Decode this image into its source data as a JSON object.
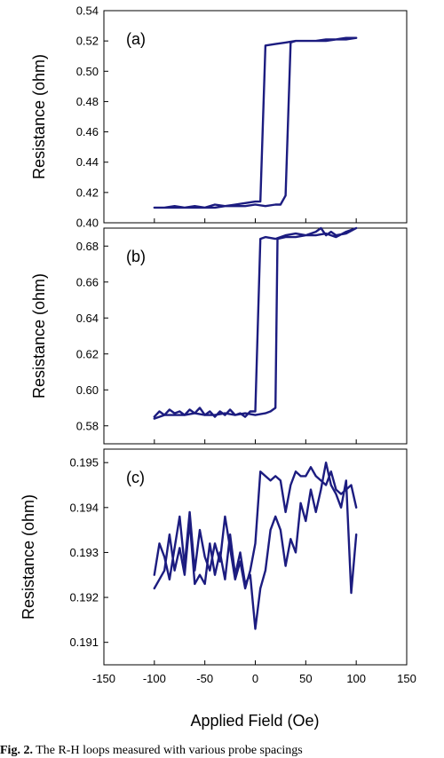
{
  "caption": {
    "label": "Fig. 2.",
    "text": "The R-H loops measured with various probe spacings"
  },
  "colors": {
    "line": "#1c1c80",
    "axis": "#000000",
    "background": "#ffffff"
  },
  "chart_data": [
    {
      "type": "line",
      "panel_label": "(a)",
      "xlabel": "",
      "ylabel": "Resistance (ohm)",
      "xlim": [
        -150,
        150
      ],
      "ylim": [
        0.4,
        0.54
      ],
      "yticks": [
        "0.40",
        "0.42",
        "0.44",
        "0.46",
        "0.48",
        "0.50",
        "0.52",
        "0.54"
      ],
      "grid": false,
      "series": [
        {
          "x": [
            -100,
            -90,
            -80,
            -70,
            -60,
            -50,
            -40,
            -30,
            -20,
            -10,
            0,
            5,
            10,
            20,
            30,
            40,
            50,
            60,
            70,
            80,
            90,
            100,
            90,
            80,
            70,
            60,
            50,
            40,
            35,
            30,
            25,
            20,
            10,
            0,
            -10,
            -20,
            -30,
            -40,
            -50,
            -60,
            -70,
            -80,
            -90,
            -100
          ],
          "y": [
            0.41,
            0.41,
            0.411,
            0.41,
            0.411,
            0.41,
            0.412,
            0.411,
            0.412,
            0.413,
            0.414,
            0.414,
            0.517,
            0.518,
            0.519,
            0.52,
            0.52,
            0.52,
            0.521,
            0.521,
            0.522,
            0.522,
            0.521,
            0.521,
            0.52,
            0.52,
            0.52,
            0.52,
            0.519,
            0.418,
            0.412,
            0.412,
            0.411,
            0.412,
            0.411,
            0.411,
            0.411,
            0.41,
            0.41,
            0.41,
            0.41,
            0.41,
            0.41,
            0.41
          ]
        }
      ]
    },
    {
      "type": "line",
      "panel_label": "(b)",
      "xlabel": "",
      "ylabel": "Resistance (ohm)",
      "xlim": [
        -150,
        150
      ],
      "ylim": [
        0.57,
        0.69
      ],
      "yticks": [
        "0.58",
        "0.60",
        "0.62",
        "0.64",
        "0.66",
        "0.68"
      ],
      "grid": false,
      "series": [
        {
          "x": [
            -100,
            -95,
            -90,
            -85,
            -80,
            -75,
            -70,
            -65,
            -60,
            -55,
            -50,
            -45,
            -40,
            -35,
            -30,
            -25,
            -20,
            -15,
            -10,
            -5,
            0,
            5,
            10,
            20,
            30,
            40,
            50,
            60,
            65,
            70,
            75,
            80,
            90,
            100,
            90,
            80,
            70,
            60,
            50,
            40,
            30,
            22,
            20,
            15,
            10,
            0,
            -10,
            -20,
            -30,
            -40,
            -50,
            -60,
            -70,
            -80,
            -90,
            -100
          ],
          "y": [
            0.585,
            0.588,
            0.586,
            0.589,
            0.587,
            0.588,
            0.586,
            0.589,
            0.587,
            0.59,
            0.586,
            0.588,
            0.585,
            0.588,
            0.586,
            0.589,
            0.586,
            0.587,
            0.585,
            0.588,
            0.588,
            0.684,
            0.685,
            0.684,
            0.686,
            0.687,
            0.686,
            0.688,
            0.69,
            0.686,
            0.688,
            0.686,
            0.687,
            0.69,
            0.688,
            0.685,
            0.687,
            0.686,
            0.686,
            0.685,
            0.685,
            0.684,
            0.59,
            0.588,
            0.587,
            0.586,
            0.587,
            0.586,
            0.587,
            0.586,
            0.586,
            0.587,
            0.586,
            0.586,
            0.586,
            0.584
          ]
        }
      ]
    },
    {
      "type": "line",
      "panel_label": "(c)",
      "xlabel": "Applied Field (Oe)",
      "ylabel": "Resistance (ohm)",
      "xlim": [
        -150,
        150
      ],
      "ylim": [
        0.1905,
        0.1953
      ],
      "yticks": [
        "0.191",
        "0.192",
        "0.193",
        "0.194",
        "0.195"
      ],
      "xticks": [
        "-150",
        "-100",
        "-50",
        "0",
        "50",
        "100",
        "150"
      ],
      "grid": false,
      "series": [
        {
          "x": [
            -100,
            -95,
            -90,
            -85,
            -80,
            -75,
            -70,
            -65,
            -60,
            -55,
            -50,
            -45,
            -40,
            -35,
            -30,
            -25,
            -20,
            -15,
            -10,
            -5,
            0,
            5,
            10,
            15,
            20,
            25,
            30,
            35,
            40,
            45,
            50,
            55,
            60,
            65,
            70,
            75,
            80,
            85,
            90,
            95,
            100
          ],
          "y": [
            0.1925,
            0.1932,
            0.1929,
            0.1924,
            0.1931,
            0.1938,
            0.1927,
            0.1939,
            0.1926,
            0.1935,
            0.1929,
            0.1926,
            0.1932,
            0.1928,
            0.1938,
            0.1931,
            0.1924,
            0.1928,
            0.1922,
            0.1926,
            0.1932,
            0.1948,
            0.1947,
            0.1946,
            0.1947,
            0.1946,
            0.1939,
            0.1945,
            0.1948,
            0.1947,
            0.1947,
            0.1949,
            0.1947,
            0.1946,
            0.1945,
            0.1948,
            0.1944,
            0.1943,
            0.1944,
            0.1945,
            0.194
          ]
        },
        {
          "x": [
            100,
            95,
            90,
            85,
            80,
            75,
            70,
            65,
            60,
            55,
            50,
            45,
            40,
            35,
            30,
            25,
            20,
            15,
            10,
            5,
            0,
            -5,
            -10,
            -15,
            -20,
            -25,
            -30,
            -35,
            -40,
            -45,
            -50,
            -55,
            -60,
            -65,
            -70,
            -75,
            -80,
            -85,
            -90,
            -95,
            -100
          ],
          "y": [
            0.1934,
            0.1921,
            0.1946,
            0.194,
            0.1943,
            0.1945,
            0.195,
            0.1944,
            0.1939,
            0.1944,
            0.1937,
            0.1941,
            0.193,
            0.1933,
            0.1927,
            0.1935,
            0.1938,
            0.1935,
            0.1926,
            0.1922,
            0.1913,
            0.1925,
            0.1923,
            0.193,
            0.1925,
            0.1934,
            0.1924,
            0.193,
            0.1925,
            0.1932,
            0.1923,
            0.1925,
            0.1923,
            0.1937,
            0.1925,
            0.1931,
            0.1926,
            0.1934,
            0.1926,
            0.1924,
            0.1922
          ]
        }
      ]
    }
  ]
}
